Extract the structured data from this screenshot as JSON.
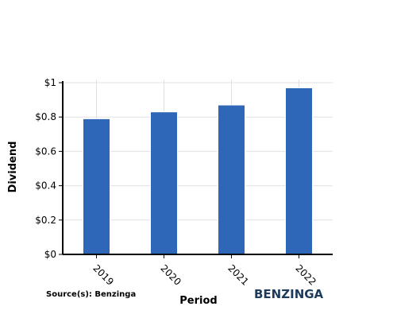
{
  "chart_data": {
    "type": "bar",
    "categories": [
      "2019",
      "2020",
      "2021",
      "2022"
    ],
    "values": [
      0.79,
      0.83,
      0.87,
      0.97
    ],
    "xlabel": "Period",
    "ylabel": "Dividend",
    "ylim": [
      0,
      1
    ],
    "yticks": [
      "$0",
      "$0.2",
      "$0.4",
      "$0.6",
      "$0.8",
      "$1"
    ],
    "ytick_values": [
      0,
      0.2,
      0.4,
      0.6,
      0.8,
      1
    ],
    "grid": true,
    "bar_color": "#2e67b8"
  },
  "footer": {
    "source": "Source(s): Benzinga",
    "brand": "BENZINGA"
  }
}
